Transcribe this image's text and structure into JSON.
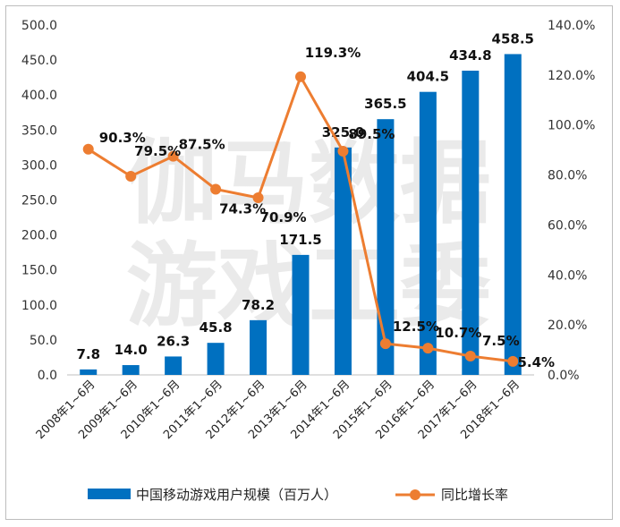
{
  "chart_data": {
    "type": "bar+line",
    "categories": [
      "2008年1~6月",
      "2009年1~6月",
      "2010年1~6月",
      "2011年1~6月",
      "2012年1~6月",
      "2013年1~6月",
      "2014年1~6月",
      "2015年1~6月",
      "2016年1~6月",
      "2017年1~6月",
      "2018年1~6月"
    ],
    "series": [
      {
        "name": "中国移动游戏用户规模（百万人）",
        "kind": "bar",
        "axis": "left",
        "values": [
          7.8,
          14.0,
          26.3,
          45.8,
          78.2,
          171.5,
          325.0,
          365.5,
          404.5,
          434.8,
          458.5
        ],
        "labels": [
          "7.8",
          "14.0",
          "26.3",
          "45.8",
          "78.2",
          "171.5",
          "325.0",
          "365.5",
          "404.5",
          "434.8",
          "458.5"
        ],
        "color": "#0070c0"
      },
      {
        "name": "同比增长率",
        "kind": "line",
        "axis": "right",
        "values": [
          90.3,
          79.5,
          87.5,
          74.3,
          70.9,
          119.3,
          89.5,
          12.5,
          10.7,
          7.5,
          5.4
        ],
        "labels": [
          "90.3%",
          "79.5%",
          "87.5%",
          "74.3%",
          "70.9%",
          "119.3%",
          "89.5%",
          "12.5%",
          "10.7%",
          "7.5%",
          "5.4%"
        ],
        "color": "#ed7d31"
      }
    ],
    "y_left": {
      "min": 0,
      "max": 500,
      "ticks": [
        "0.0",
        "50.0",
        "100.0",
        "150.0",
        "200.0",
        "250.0",
        "300.0",
        "350.0",
        "400.0",
        "450.0",
        "500.0"
      ]
    },
    "y_right": {
      "min": 0,
      "max": 140,
      "ticks": [
        "0.0%",
        "20.0%",
        "40.0%",
        "60.0%",
        "80.0%",
        "100.0%",
        "120.0%",
        "140.0%"
      ]
    },
    "legend_position": "bottom",
    "grid": false
  },
  "watermark": [
    "伽马数据",
    "游戏工委"
  ]
}
